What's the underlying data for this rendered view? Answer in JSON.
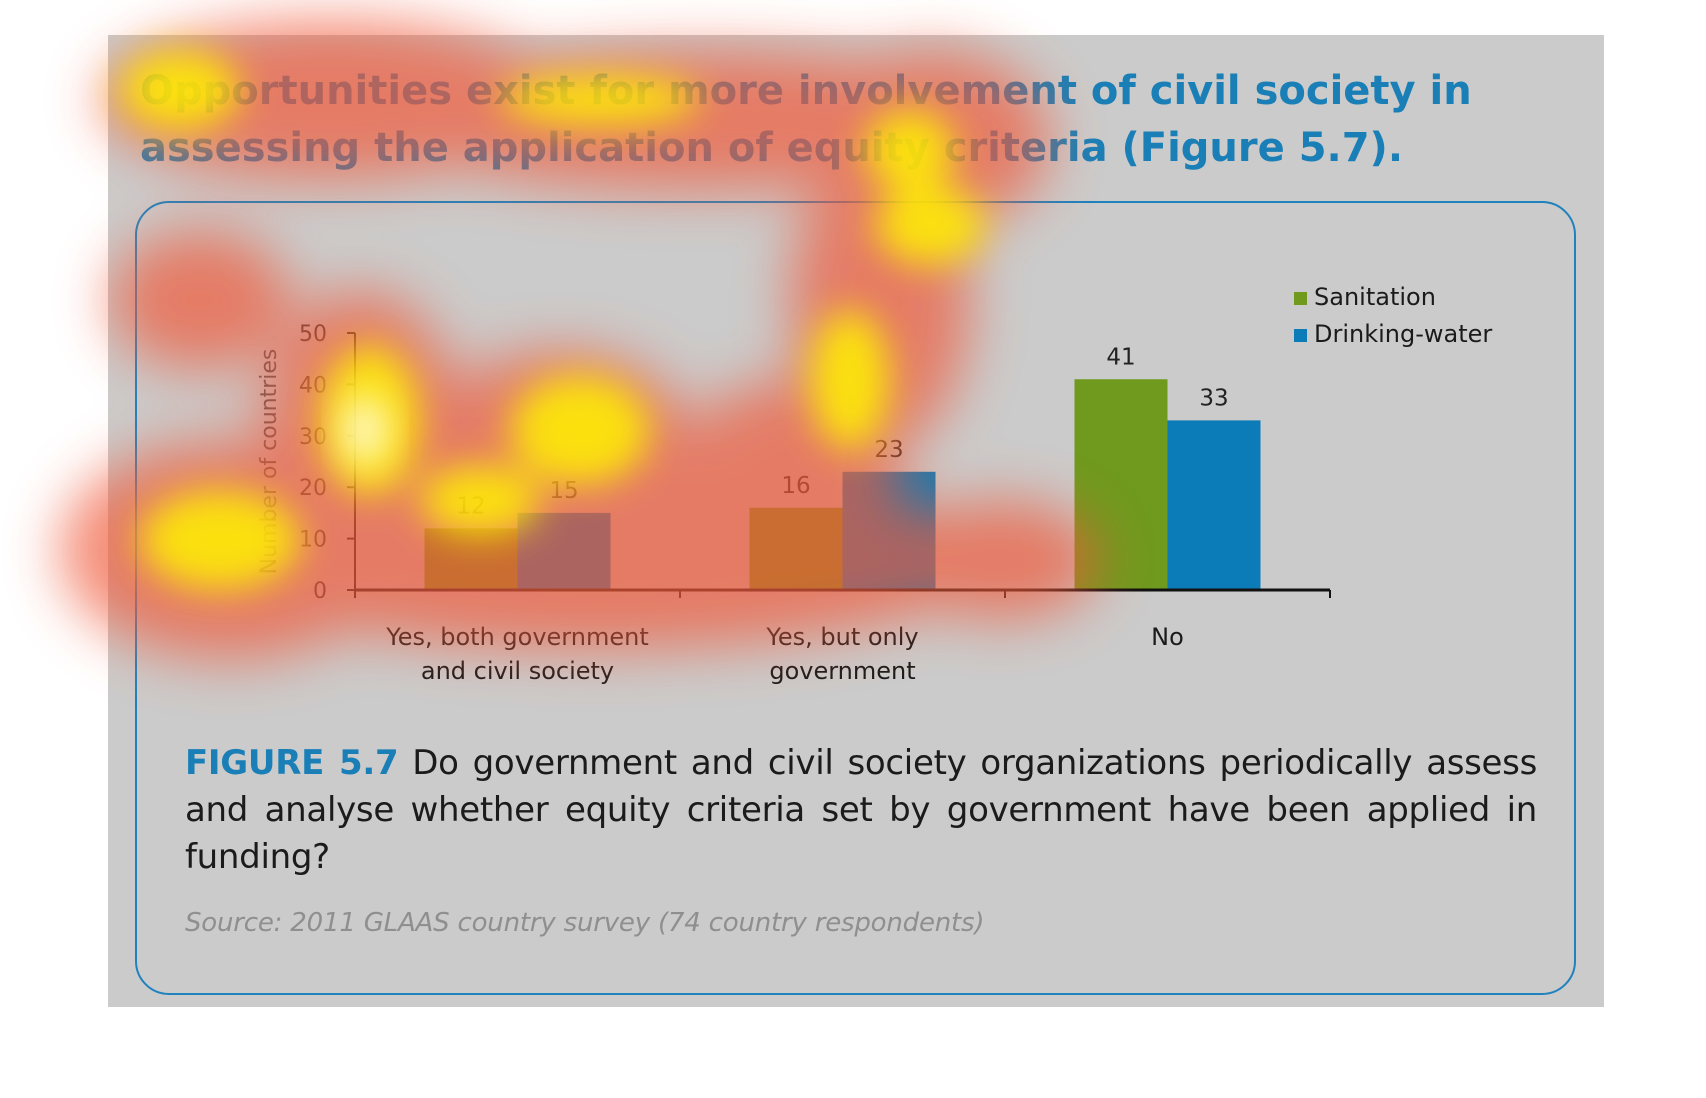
{
  "headline": "Opportunities exist for more involvement of civil society in assessing the application of equity criteria (Figure 5.7).",
  "caption": {
    "label": "FIGURE 5.7",
    "text": "Do government and civil society organizations periodically assess and analyse whether equity criteria set by government have been applied in funding?"
  },
  "source": "Source: 2011 GLAAS country survey (74 country respondents)",
  "colors": {
    "sanitation": "#6f9a1e",
    "drinking_water": "#0c7cb8",
    "accent": "#1a7fb6",
    "background": "#cbcbcb"
  },
  "chart_data": {
    "type": "bar",
    "title": "",
    "xlabel": "",
    "ylabel": "Number of countries",
    "ylim": [
      0,
      50
    ],
    "yticks": [
      0,
      10,
      20,
      30,
      40,
      50
    ],
    "categories": [
      [
        "Yes, both government",
        "and civil society"
      ],
      [
        "Yes, but only",
        "government"
      ],
      [
        "No"
      ]
    ],
    "series": [
      {
        "name": "Sanitation",
        "values": [
          12,
          16,
          41
        ]
      },
      {
        "name": "Drinking-water",
        "values": [
          15,
          23,
          33
        ]
      }
    ],
    "data_labels": true,
    "legend_position": "top-right",
    "grid": false
  }
}
